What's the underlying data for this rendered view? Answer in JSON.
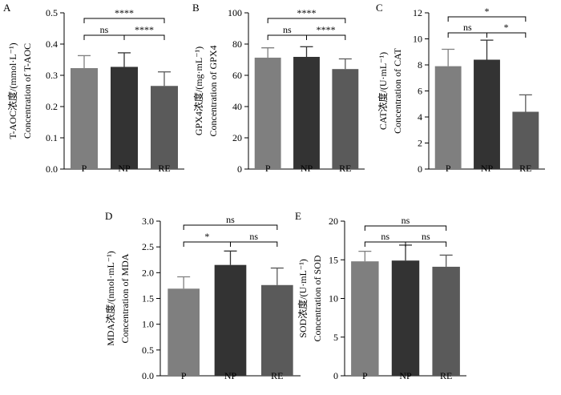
{
  "colors": {
    "P": "#7f7f7f",
    "NP": "#333333",
    "RE": "#5a5a5a"
  },
  "chart_data": [
    {
      "panel": "A",
      "type": "bar",
      "categories": [
        "P",
        "NP",
        "RE"
      ],
      "values": [
        0.323,
        0.327,
        0.266
      ],
      "errors": [
        0.04,
        0.045,
        0.045
      ],
      "ylabel_cn": "T-AOC浓度/(mmol·L⁻¹)",
      "ylabel_en": "Concentration of T-AOC",
      "ylim": [
        0,
        0.5
      ],
      "yticks": [
        "0.0",
        "0.1",
        "0.2",
        "0.3",
        "0.4",
        "0.5"
      ],
      "comparisons": [
        {
          "from": 0,
          "to": 1,
          "label": "ns"
        },
        {
          "from": 1,
          "to": 2,
          "label": "****"
        },
        {
          "from": 0,
          "to": 2,
          "label": "****"
        }
      ]
    },
    {
      "panel": "B",
      "type": "bar",
      "categories": [
        "P",
        "NP",
        "RE"
      ],
      "values": [
        71.3,
        71.8,
        64.0
      ],
      "errors": [
        6.3,
        6.5,
        6.5
      ],
      "ylabel_cn": "GPX4浓度/(mg·mL⁻¹)",
      "ylabel_en": "Concentration of GPX4",
      "ylim": [
        0,
        100
      ],
      "yticks": [
        "0",
        "20",
        "40",
        "60",
        "80",
        "100"
      ],
      "comparisons": [
        {
          "from": 0,
          "to": 1,
          "label": "ns"
        },
        {
          "from": 1,
          "to": 2,
          "label": "****"
        },
        {
          "from": 0,
          "to": 2,
          "label": "****"
        }
      ]
    },
    {
      "panel": "C",
      "type": "bar",
      "categories": [
        "P",
        "NP",
        "RE"
      ],
      "values": [
        7.9,
        8.4,
        4.4
      ],
      "errors": [
        1.3,
        1.5,
        1.3
      ],
      "ylabel_cn": "CAT浓度/(U·mL⁻¹)",
      "ylabel_en": "Concentration of CAT",
      "ylim": [
        0,
        12
      ],
      "yticks": [
        "0",
        "2",
        "4",
        "6",
        "8",
        "10",
        "12"
      ],
      "comparisons": [
        {
          "from": 0,
          "to": 1,
          "label": "ns"
        },
        {
          "from": 1,
          "to": 2,
          "label": "*"
        },
        {
          "from": 0,
          "to": 2,
          "label": "*"
        }
      ]
    },
    {
      "panel": "D",
      "type": "bar",
      "categories": [
        "P",
        "NP",
        "RE"
      ],
      "values": [
        1.69,
        2.15,
        1.76
      ],
      "errors": [
        0.23,
        0.27,
        0.33
      ],
      "ylabel_cn": "MDA浓度/(nmol·mL⁻¹)",
      "ylabel_en": "Concentration of MDA",
      "ylim": [
        0,
        3.0
      ],
      "yticks": [
        "0.0",
        "0.5",
        "1.0",
        "1.5",
        "2.0",
        "2.5",
        "3.0"
      ],
      "comparisons": [
        {
          "from": 0,
          "to": 1,
          "label": "*"
        },
        {
          "from": 1,
          "to": 2,
          "label": "ns"
        },
        {
          "from": 0,
          "to": 2,
          "label": "ns"
        }
      ]
    },
    {
      "panel": "E",
      "type": "bar",
      "categories": [
        "P",
        "NP",
        "RE"
      ],
      "values": [
        14.8,
        14.9,
        14.1
      ],
      "errors": [
        1.3,
        2.0,
        1.5
      ],
      "ylabel_cn": "SOD浓度/(U·mL⁻¹)",
      "ylabel_en": "Concentration of SOD",
      "ylim": [
        0,
        20
      ],
      "yticks": [
        "0",
        "5",
        "10",
        "15",
        "20"
      ],
      "comparisons": [
        {
          "from": 0,
          "to": 1,
          "label": "ns"
        },
        {
          "from": 1,
          "to": 2,
          "label": "ns"
        },
        {
          "from": 0,
          "to": 2,
          "label": "ns"
        }
      ]
    }
  ]
}
